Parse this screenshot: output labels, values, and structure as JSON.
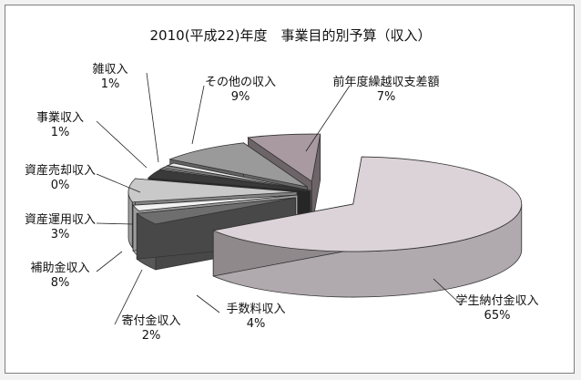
{
  "chart_data": {
    "type": "pie",
    "title": "2010(平成22)年度　事業目的別予算（収入）",
    "slices": [
      {
        "label": "学生納付金収入",
        "value_text": "65%",
        "value": 65,
        "color": "#dcd3d8"
      },
      {
        "label": "手数料収入",
        "value_text": "4%",
        "value": 4,
        "color": "#6e6e6e"
      },
      {
        "label": "寄付金収入",
        "value_text": "2%",
        "value": 2,
        "color": "#f2f2f2"
      },
      {
        "label": "補助金収入",
        "value_text": "8%",
        "value": 8,
        "color": "#c9c9c9"
      },
      {
        "label": "資産運用収入",
        "value_text": "3%",
        "value": 3,
        "color": "#3a3a3a"
      },
      {
        "label": "資産売却収入",
        "value_text": "0%",
        "value": 0,
        "color": "#ffffff"
      },
      {
        "label": "事業収入",
        "value_text": "1%",
        "value": 1,
        "color": "#808080"
      },
      {
        "label": "雑収入",
        "value_text": "1%",
        "value": 1,
        "color": "#e8e8e8"
      },
      {
        "label": "その他の収入",
        "value_text": "9%",
        "value": 9,
        "color": "#9a9a9a"
      },
      {
        "label": "前年度繰越収支差額",
        "value_text": "7%",
        "value": 7,
        "color": "#a89aa0"
      }
    ]
  }
}
